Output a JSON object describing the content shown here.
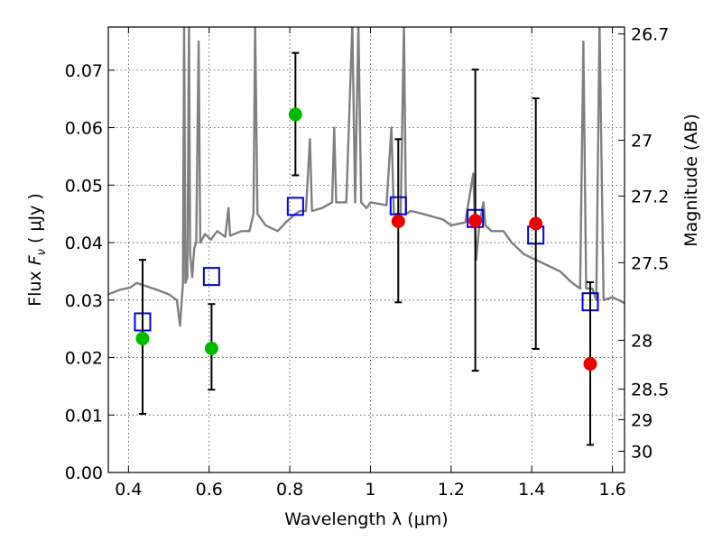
{
  "chart_data": {
    "type": "scatter",
    "title": "",
    "xlabel": "Wavelength  λ (μm)",
    "ylabel": "Flux  F_ν  ( μJy )",
    "ylabel_parts": {
      "prefix": "Flux  ",
      "symbol": "F",
      "subscript": "ν",
      "suffix": "  ( μJy )"
    },
    "y2label": "Magnitude (AB)",
    "xlim": [
      0.35,
      1.63
    ],
    "ylim": [
      0.0,
      0.0775
    ],
    "x_ticks": [
      0.4,
      0.6,
      0.8,
      1.0,
      1.2,
      1.4,
      1.6
    ],
    "x_tick_labels": [
      "0.4",
      "0.6",
      "0.8",
      "1",
      "1.2",
      "1.4",
      "1.6"
    ],
    "y_ticks": [
      0.0,
      0.01,
      0.02,
      0.03,
      0.04,
      0.05,
      0.06,
      0.07
    ],
    "y_tick_labels": [
      "0.00",
      "0.01",
      "0.02",
      "0.03",
      "0.04",
      "0.05",
      "0.06",
      "0.07"
    ],
    "y2_ticks": [
      {
        "label": "26.7",
        "flux": 0.0763
      },
      {
        "label": "27",
        "flux": 0.0578
      },
      {
        "label": "27.2",
        "flux": 0.0481
      },
      {
        "label": "27.5",
        "flux": 0.0365
      },
      {
        "label": "28",
        "flux": 0.023
      },
      {
        "label": "28.5",
        "flux": 0.0145
      },
      {
        "label": "29",
        "flux": 0.0092
      },
      {
        "label": "30",
        "flux": 0.0037
      }
    ],
    "grid": true,
    "series": [
      {
        "marker": "circle",
        "color": "#00bb00",
        "points": [
          {
            "x": 0.435,
            "y": 0.0233,
            "err_low": 0.0102,
            "err_high": 0.037
          },
          {
            "x": 0.606,
            "y": 0.0216,
            "err_low": 0.0144,
            "err_high": 0.0293
          },
          {
            "x": 0.814,
            "y": 0.0623,
            "err_low": 0.0517,
            "err_high": 0.073
          }
        ]
      },
      {
        "marker": "circle",
        "color": "#ee0000",
        "points": [
          {
            "x": 1.069,
            "y": 0.0437,
            "err_low": 0.0296,
            "err_high": 0.058
          },
          {
            "x": 1.26,
            "y": 0.0438,
            "err_low": 0.0177,
            "err_high": 0.0701
          },
          {
            "x": 1.41,
            "y": 0.0433,
            "err_low": 0.0215,
            "err_high": 0.0651
          },
          {
            "x": 1.545,
            "y": 0.0189,
            "err_low": 0.0048,
            "err_high": 0.0331
          }
        ]
      },
      {
        "marker": "open-square",
        "color": "#0000dd",
        "points": [
          {
            "x": 0.435,
            "y": 0.0262
          },
          {
            "x": 0.606,
            "y": 0.0341
          },
          {
            "x": 0.814,
            "y": 0.0463
          },
          {
            "x": 1.069,
            "y": 0.0464
          },
          {
            "x": 1.26,
            "y": 0.0442
          },
          {
            "x": 1.41,
            "y": 0.0413
          },
          {
            "x": 1.545,
            "y": 0.0297
          }
        ]
      },
      {
        "type": "line",
        "color": "#7f7f7f",
        "points": [
          [
            0.35,
            0.031
          ],
          [
            0.38,
            0.0318
          ],
          [
            0.405,
            0.0322
          ],
          [
            0.42,
            0.033
          ],
          [
            0.44,
            0.0325
          ],
          [
            0.47,
            0.0318
          ],
          [
            0.5,
            0.031
          ],
          [
            0.52,
            0.03
          ],
          [
            0.528,
            0.0255
          ],
          [
            0.535,
            0.033
          ],
          [
            0.538,
            0.078
          ],
          [
            0.541,
            0.033
          ],
          [
            0.546,
            0.034
          ],
          [
            0.55,
            0.078
          ],
          [
            0.553,
            0.038
          ],
          [
            0.558,
            0.034
          ],
          [
            0.563,
            0.039
          ],
          [
            0.568,
            0.04
          ],
          [
            0.574,
            0.075
          ],
          [
            0.578,
            0.04
          ],
          [
            0.59,
            0.0415
          ],
          [
            0.604,
            0.0405
          ],
          [
            0.62,
            0.042
          ],
          [
            0.64,
            0.041
          ],
          [
            0.648,
            0.046
          ],
          [
            0.652,
            0.0412
          ],
          [
            0.68,
            0.042
          ],
          [
            0.7,
            0.042
          ],
          [
            0.71,
            0.045
          ],
          [
            0.714,
            0.078
          ],
          [
            0.72,
            0.045
          ],
          [
            0.74,
            0.043
          ],
          [
            0.77,
            0.042
          ],
          [
            0.79,
            0.0435
          ],
          [
            0.814,
            0.045
          ],
          [
            0.825,
            0.0455
          ],
          [
            0.84,
            0.0455
          ],
          [
            0.85,
            0.058
          ],
          [
            0.855,
            0.0455
          ],
          [
            0.88,
            0.046
          ],
          [
            0.905,
            0.047
          ],
          [
            0.91,
            0.06
          ],
          [
            0.915,
            0.047
          ],
          [
            0.94,
            0.047
          ],
          [
            0.955,
            0.078
          ],
          [
            0.962,
            0.047
          ],
          [
            0.97,
            0.078
          ],
          [
            0.977,
            0.047
          ],
          [
            0.99,
            0.046
          ],
          [
            1.0,
            0.047
          ],
          [
            1.04,
            0.0465
          ],
          [
            1.052,
            0.06
          ],
          [
            1.058,
            0.045
          ],
          [
            1.075,
            0.045
          ],
          [
            1.083,
            0.078
          ],
          [
            1.088,
            0.045
          ],
          [
            1.1,
            0.0455
          ],
          [
            1.13,
            0.045
          ],
          [
            1.18,
            0.044
          ],
          [
            1.2,
            0.043
          ],
          [
            1.235,
            0.0435
          ],
          [
            1.255,
            0.052
          ],
          [
            1.262,
            0.037
          ],
          [
            1.27,
            0.043
          ],
          [
            1.28,
            0.047
          ],
          [
            1.285,
            0.043
          ],
          [
            1.3,
            0.042
          ],
          [
            1.33,
            0.042
          ],
          [
            1.35,
            0.04
          ],
          [
            1.38,
            0.038
          ],
          [
            1.41,
            0.037
          ],
          [
            1.44,
            0.036
          ],
          [
            1.47,
            0.035
          ],
          [
            1.5,
            0.033
          ],
          [
            1.52,
            0.032
          ],
          [
            1.528,
            0.075
          ],
          [
            1.535,
            0.032
          ],
          [
            1.55,
            0.032
          ],
          [
            1.56,
            0.03
          ],
          [
            1.568,
            0.078
          ],
          [
            1.578,
            0.03
          ],
          [
            1.6,
            0.0305
          ],
          [
            1.63,
            0.0295
          ]
        ]
      }
    ]
  }
}
